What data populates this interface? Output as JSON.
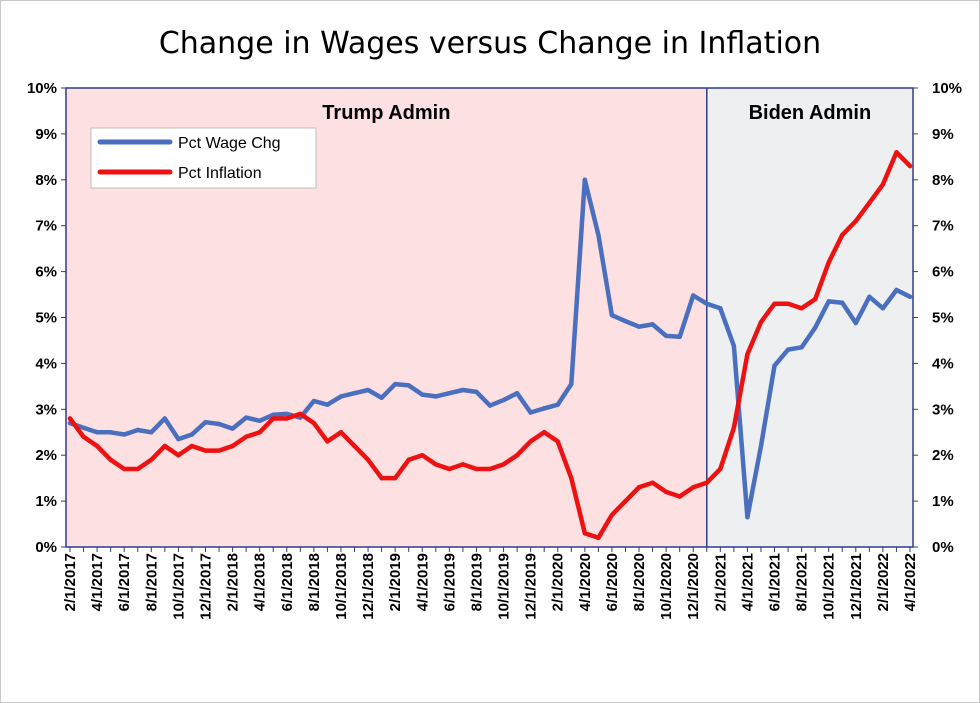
{
  "chart_data": {
    "type": "line",
    "title": "Change in Wages versus Change in Inflation",
    "ylim": [
      0,
      10
    ],
    "y_ticks": [
      "0%",
      "1%",
      "2%",
      "3%",
      "4%",
      "5%",
      "6%",
      "7%",
      "8%",
      "9%",
      "10%"
    ],
    "x": [
      "2/1/2017",
      "3/1/2017",
      "4/1/2017",
      "5/1/2017",
      "6/1/2017",
      "7/1/2017",
      "8/1/2017",
      "9/1/2017",
      "10/1/2017",
      "11/1/2017",
      "12/1/2017",
      "1/1/2018",
      "2/1/2018",
      "3/1/2018",
      "4/1/2018",
      "5/1/2018",
      "6/1/2018",
      "7/1/2018",
      "8/1/2018",
      "9/1/2018",
      "10/1/2018",
      "11/1/2018",
      "12/1/2018",
      "1/1/2019",
      "2/1/2019",
      "3/1/2019",
      "4/1/2019",
      "5/1/2019",
      "6/1/2019",
      "7/1/2019",
      "8/1/2019",
      "9/1/2019",
      "10/1/2019",
      "11/1/2019",
      "12/1/2019",
      "1/1/2020",
      "2/1/2020",
      "3/1/2020",
      "4/1/2020",
      "5/1/2020",
      "6/1/2020",
      "7/1/2020",
      "8/1/2020",
      "9/1/2020",
      "10/1/2020",
      "11/1/2020",
      "12/1/2020",
      "1/1/2021",
      "2/1/2021",
      "3/1/2021",
      "4/1/2021",
      "5/1/2021",
      "6/1/2021",
      "7/1/2021",
      "8/1/2021",
      "9/1/2021",
      "10/1/2021",
      "11/1/2021",
      "12/1/2021",
      "1/1/2022",
      "2/1/2022",
      "3/1/2022",
      "4/1/2022"
    ],
    "x_tick_labels": [
      "2/1/2017",
      "4/1/2017",
      "6/1/2017",
      "8/1/2017",
      "10/1/2017",
      "12/1/2017",
      "2/1/2018",
      "4/1/2018",
      "6/1/2018",
      "8/1/2018",
      "10/1/2018",
      "12/1/2018",
      "2/1/2019",
      "4/1/2019",
      "6/1/2019",
      "8/1/2019",
      "10/1/2019",
      "12/1/2019",
      "2/1/2020",
      "4/1/2020",
      "6/1/2020",
      "8/1/2020",
      "10/1/2020",
      "12/1/2020",
      "2/1/2021",
      "4/1/2021",
      "6/1/2021",
      "8/1/2021",
      "10/1/2021",
      "12/1/2021",
      "2/1/2022",
      "4/1/2022"
    ],
    "series": [
      {
        "name": "Pct Wage Chg",
        "color": "#4a6fbf",
        "values": [
          2.7,
          2.6,
          2.5,
          2.5,
          2.45,
          2.55,
          2.5,
          2.8,
          2.35,
          2.45,
          2.72,
          2.68,
          2.58,
          2.82,
          2.75,
          2.88,
          2.9,
          2.82,
          3.18,
          3.1,
          3.28,
          3.35,
          3.42,
          3.25,
          3.55,
          3.52,
          3.32,
          3.28,
          3.35,
          3.42,
          3.38,
          3.08,
          3.2,
          3.35,
          2.93,
          3.02,
          3.1,
          3.55,
          8.0,
          6.8,
          5.05,
          4.92,
          4.8,
          4.85,
          4.6,
          4.58,
          5.48,
          5.3,
          5.2,
          4.38,
          0.65,
          2.2,
          3.95,
          4.3,
          4.35,
          4.78,
          5.35,
          5.32,
          4.88,
          5.45,
          5.2,
          5.6,
          5.45
        ]
      },
      {
        "name": "Pct Inflation",
        "color": "#ee1111",
        "values": [
          2.8,
          2.4,
          2.2,
          1.9,
          1.7,
          1.7,
          1.9,
          2.2,
          2.0,
          2.2,
          2.1,
          2.1,
          2.2,
          2.4,
          2.5,
          2.8,
          2.8,
          2.9,
          2.7,
          2.3,
          2.5,
          2.2,
          1.9,
          1.5,
          1.5,
          1.9,
          2.0,
          1.8,
          1.7,
          1.8,
          1.7,
          1.7,
          1.8,
          2.0,
          2.3,
          2.5,
          2.3,
          1.5,
          0.3,
          0.2,
          0.7,
          1.0,
          1.3,
          1.4,
          1.2,
          1.1,
          1.3,
          1.4,
          1.7,
          2.6,
          4.2,
          4.9,
          5.3,
          5.3,
          5.2,
          5.4,
          6.2,
          6.8,
          7.1,
          7.5,
          7.9,
          8.6,
          8.3
        ]
      }
    ],
    "regions": [
      {
        "label": "Trump Admin",
        "start": "2/1/2017",
        "end": "1/1/2021",
        "color": "#fde0e1"
      },
      {
        "label": "Biden Admin",
        "start": "1/1/2021",
        "end": "4/1/2022",
        "color": "#edeff1"
      }
    ],
    "grid": false,
    "legend_position": "top-left"
  }
}
